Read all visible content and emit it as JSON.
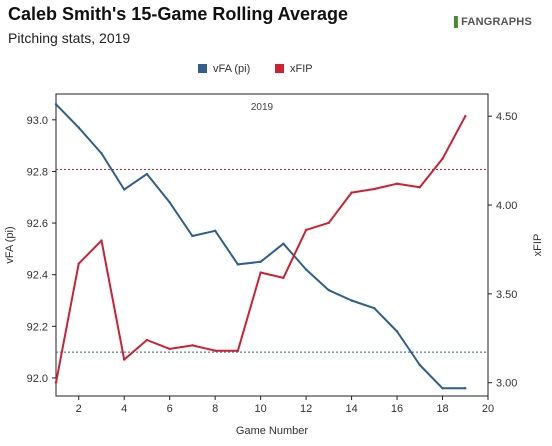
{
  "header": {
    "title": "Caleb Smith's 15-Game Rolling Average",
    "subtitle": "Pitching stats, 2019",
    "brand_prefix": "❚",
    "brand": "FANGRAPHS"
  },
  "chart_data": {
    "type": "line",
    "title": "Caleb Smith's 15-Game Rolling Average",
    "subtitle": "Pitching stats, 2019",
    "panel_label": "2019",
    "xlabel": "Game Number",
    "ylabel_left": "vFA (pi)",
    "ylabel_right": "xFIP",
    "xlim": [
      1,
      20
    ],
    "ylim_left": [
      91.93,
      93.1
    ],
    "ylim_right": [
      2.925,
      4.625
    ],
    "x_ticks": [
      2,
      4,
      6,
      8,
      10,
      12,
      14,
      16,
      18,
      20
    ],
    "y_ticks_left": [
      92.0,
      92.2,
      92.4,
      92.6,
      92.8,
      93.0
    ],
    "y_ticks_right": [
      3.0,
      3.5,
      4.0,
      4.5
    ],
    "legend_position": "top-center",
    "series": [
      {
        "name": "vFA (pi)",
        "axis": "left",
        "color": "#2f5f8a",
        "x": [
          1,
          2,
          3,
          4,
          5,
          6,
          7,
          8,
          9,
          10,
          11,
          12,
          13,
          14,
          15,
          16,
          17,
          18,
          19
        ],
        "values": [
          93.06,
          92.97,
          92.87,
          92.73,
          92.79,
          92.68,
          92.55,
          92.57,
          92.44,
          92.45,
          92.52,
          92.42,
          92.34,
          92.3,
          92.27,
          92.18,
          92.05,
          91.96,
          91.96
        ],
        "reference": 92.1
      },
      {
        "name": "xFIP",
        "axis": "right",
        "color": "#cc2233",
        "x": [
          1,
          2,
          3,
          4,
          5,
          6,
          7,
          8,
          9,
          10,
          11,
          12,
          13,
          14,
          15,
          16,
          17,
          18,
          19
        ],
        "values": [
          3.0,
          3.67,
          3.8,
          3.13,
          3.24,
          3.19,
          3.21,
          3.18,
          3.18,
          3.62,
          3.59,
          3.86,
          3.9,
          4.07,
          4.09,
          4.12,
          4.1,
          4.26,
          4.5
        ],
        "reference": 4.2
      }
    ]
  }
}
